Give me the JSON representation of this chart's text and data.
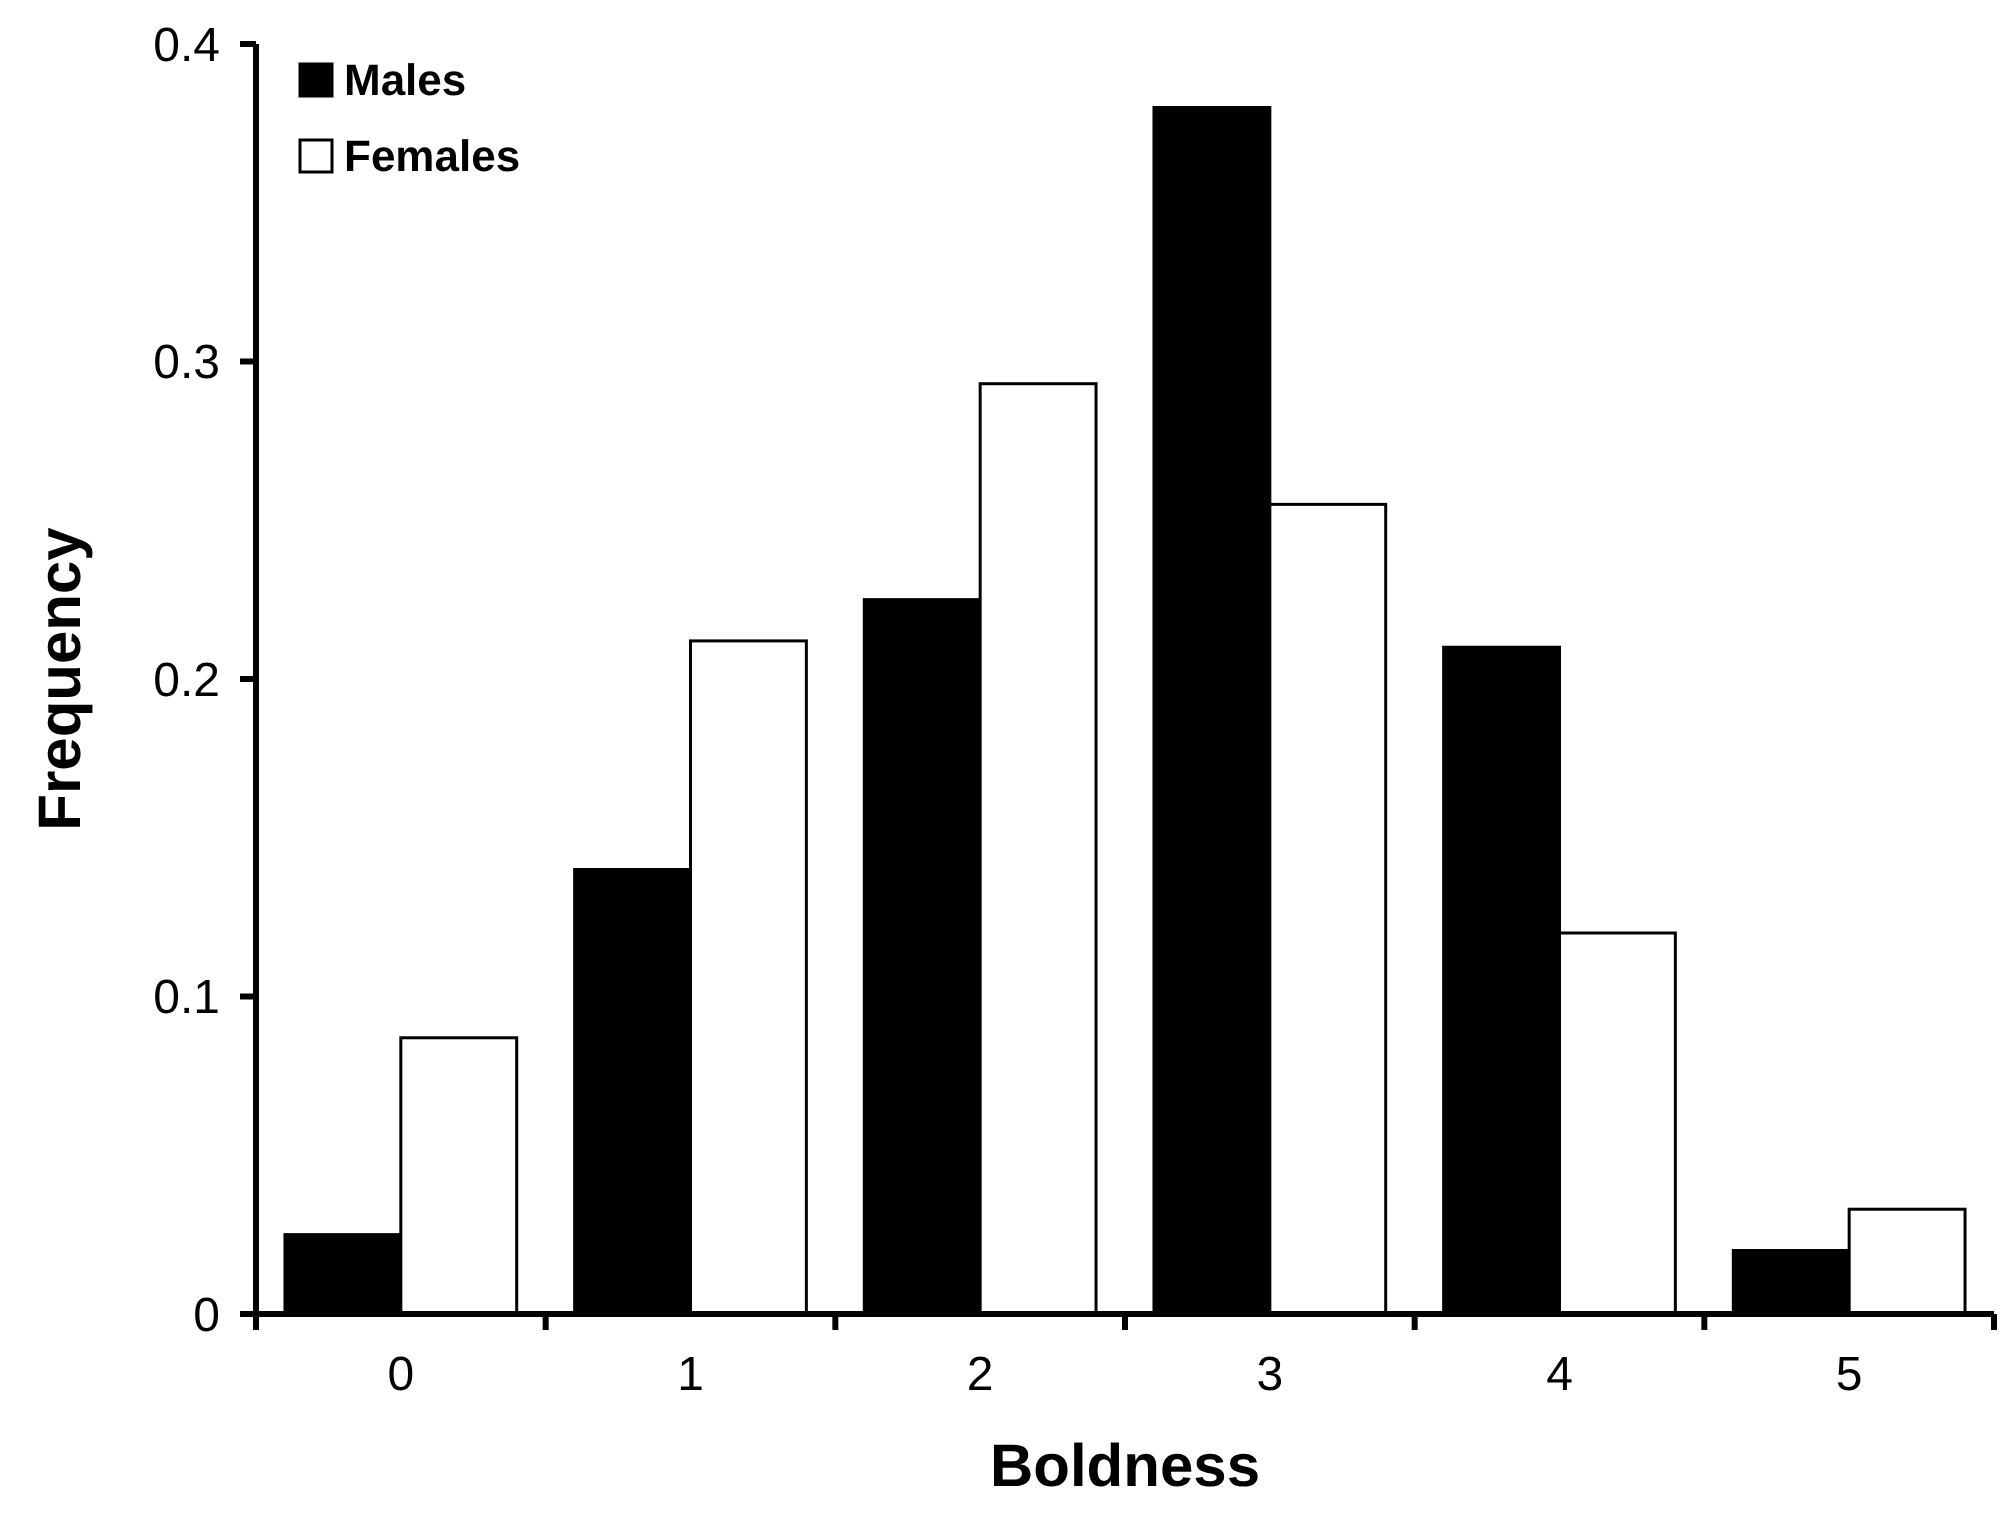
{
  "chart_data": {
    "type": "bar",
    "xlabel": "Boldness",
    "ylabel": "Frequency",
    "categories": [
      "0",
      "1",
      "2",
      "3",
      "4",
      "5"
    ],
    "series": [
      {
        "name": "Males",
        "color": "#000000",
        "values": [
          0.025,
          0.14,
          0.225,
          0.38,
          0.21,
          0.02
        ]
      },
      {
        "name": "Females",
        "color": "#ffffff",
        "values": [
          0.087,
          0.212,
          0.293,
          0.255,
          0.12,
          0.033
        ]
      }
    ],
    "ylim": [
      0,
      0.4
    ],
    "yticks": [
      {
        "value": 0,
        "label": "0"
      },
      0.1,
      0.2,
      0.3,
      0.4
    ],
    "legend": "top left",
    "grid": false
  }
}
